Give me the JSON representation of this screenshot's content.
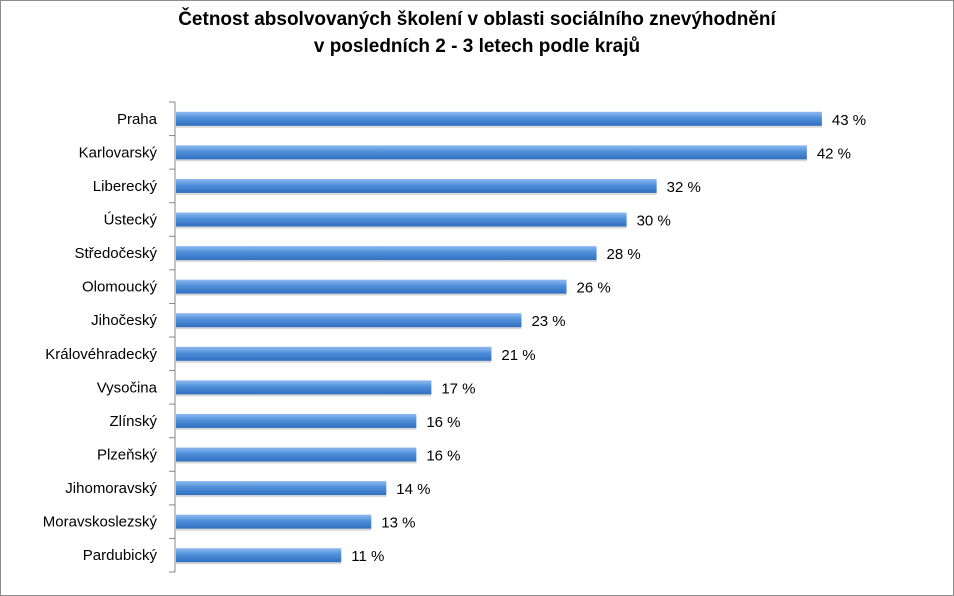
{
  "chart_data": {
    "type": "bar",
    "orientation": "horizontal",
    "title_line1": "Četnost absolvovaných školení v oblasti sociálního znevýhodnění",
    "title_line2": "v posledních  2 - 3 letech podle krajů",
    "categories": [
      "Praha",
      "Karlovarský",
      "Liberecký",
      "Ústecký",
      "Středočeský",
      "Olomoucký",
      "Jihočeský",
      "Královéhradecký",
      "Vysočina",
      "Zlínský",
      "Plzeňský",
      "Jihomoravský",
      "Moravskoslezský",
      "Pardubický"
    ],
    "values": [
      43,
      42,
      32,
      30,
      28,
      26,
      23,
      21,
      17,
      16,
      16,
      14,
      13,
      11
    ],
    "value_labels": [
      "43 %",
      "42 %",
      "32 %",
      "30 %",
      "28 %",
      "26 %",
      "23 %",
      "21 %",
      "17 %",
      "16 %",
      "16 %",
      "14 %",
      "13 %",
      "11 %"
    ],
    "xlim": [
      0,
      50
    ],
    "grid": false,
    "legend": "none",
    "bar_color": "#4f8fd9"
  }
}
